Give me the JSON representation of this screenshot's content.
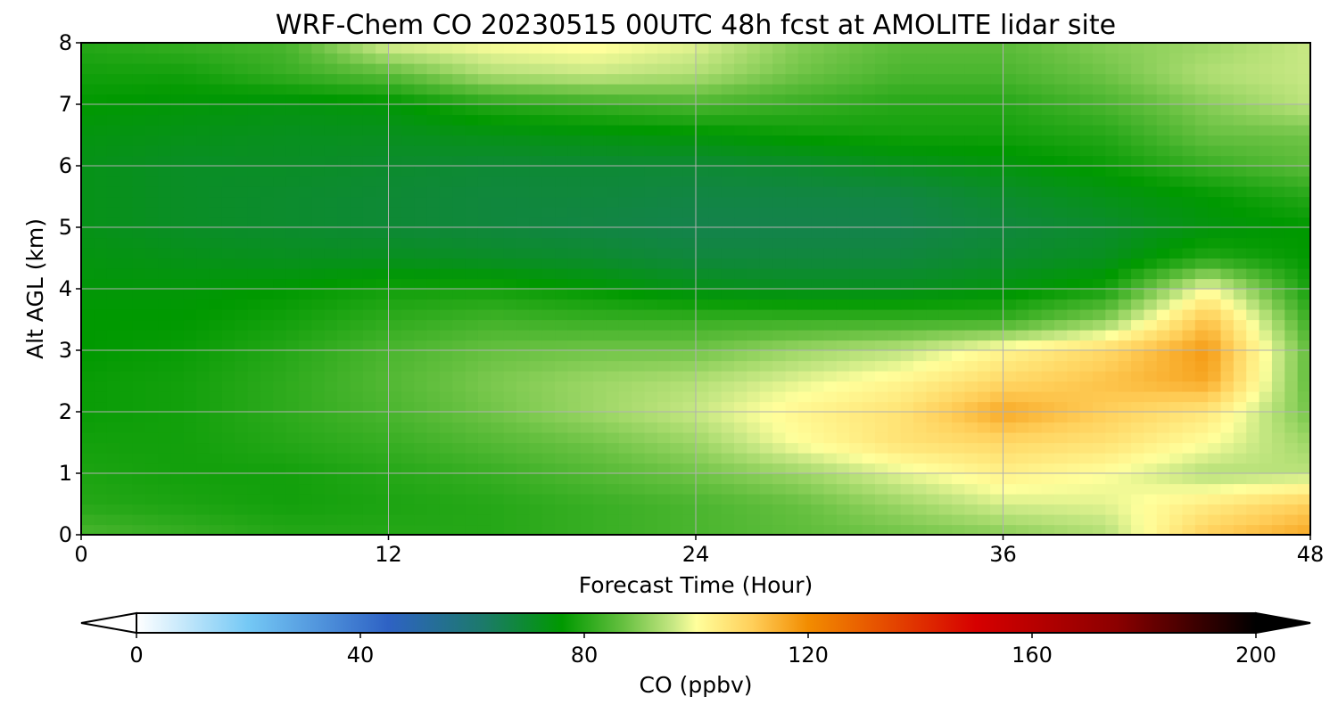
{
  "chart_data": {
    "type": "heatmap",
    "title": "WRF-Chem CO  20230515 00UTC 48h fcst at AMOLITE lidar site",
    "xlabel": "Forecast Time (Hour)",
    "ylabel": "Alt AGL (km)",
    "xlim": [
      0,
      48
    ],
    "ylim": [
      0,
      8
    ],
    "x_ticks": [
      0,
      12,
      24,
      36,
      48
    ],
    "y_ticks": [
      0,
      1,
      2,
      3,
      4,
      5,
      6,
      7,
      8
    ],
    "grid": true,
    "colorbar": {
      "label": "CO  (ppbv)",
      "min": 0,
      "max": 200,
      "ticks": [
        0,
        40,
        80,
        120,
        160,
        200
      ],
      "extend": "both",
      "orientation": "horizontal",
      "stops": [
        {
          "v": 0,
          "c": "#ffffff"
        },
        {
          "v": 20,
          "c": "#74c8f5"
        },
        {
          "v": 45,
          "c": "#2e62c4"
        },
        {
          "v": 62,
          "c": "#1c7a6a"
        },
        {
          "v": 76,
          "c": "#009900"
        },
        {
          "v": 87,
          "c": "#66c040"
        },
        {
          "v": 96,
          "c": "#c8e884"
        },
        {
          "v": 100,
          "c": "#ffff9c"
        },
        {
          "v": 110,
          "c": "#ffcf5a"
        },
        {
          "v": 120,
          "c": "#f28c00"
        },
        {
          "v": 150,
          "c": "#d60000"
        },
        {
          "v": 175,
          "c": "#8c0000"
        },
        {
          "v": 200,
          "c": "#000000"
        }
      ]
    },
    "field": {
      "x": [
        0,
        4,
        8,
        12,
        16,
        20,
        24,
        28,
        32,
        36,
        40,
        44,
        48
      ],
      "y": [
        0,
        0.5,
        1,
        1.5,
        2,
        2.5,
        3,
        3.5,
        4,
        4.5,
        5,
        5.5,
        6,
        6.5,
        7,
        7.5,
        8
      ],
      "values": [
        [
          84,
          82,
          80,
          80,
          80,
          82,
          84,
          86,
          88,
          90,
          94,
          110,
          116
        ],
        [
          80,
          79,
          78,
          79,
          80,
          82,
          84,
          87,
          92,
          97,
          98,
          104,
          110
        ],
        [
          79,
          78,
          78,
          80,
          82,
          85,
          88,
          92,
          98,
          103,
          100,
          94,
          95
        ],
        [
          78,
          78,
          80,
          82,
          85,
          88,
          92,
          100,
          106,
          108,
          106,
          100,
          92
        ],
        [
          77,
          78,
          81,
          84,
          88,
          92,
          96,
          102,
          106,
          116,
          110,
          105,
          88
        ],
        [
          77,
          78,
          81,
          85,
          89,
          92,
          94,
          98,
          102,
          108,
          112,
          116,
          86
        ],
        [
          76,
          77,
          80,
          84,
          87,
          88,
          88,
          92,
          95,
          102,
          108,
          118,
          86
        ],
        [
          76,
          76,
          78,
          81,
          83,
          82,
          82,
          82,
          82,
          82,
          90,
          112,
          82
        ],
        [
          75,
          75,
          76,
          78,
          78,
          76,
          73,
          72,
          72,
          74,
          78,
          100,
          78
        ],
        [
          74,
          73,
          72,
          72,
          71,
          70,
          68,
          68,
          68,
          70,
          72,
          80,
          76
        ],
        [
          73,
          71,
          70,
          69,
          68,
          67,
          66,
          66,
          66,
          68,
          70,
          74,
          76
        ],
        [
          73,
          71,
          70,
          69,
          68,
          68,
          67,
          67,
          67,
          70,
          73,
          76,
          80
        ],
        [
          73,
          71,
          71,
          70,
          69,
          69,
          69,
          70,
          72,
          74,
          77,
          82,
          86
        ],
        [
          74,
          73,
          72,
          72,
          73,
          74,
          75,
          77,
          78,
          78,
          80,
          87,
          88
        ],
        [
          76,
          75,
          74,
          75,
          80,
          82,
          84,
          82,
          80,
          80,
          84,
          90,
          95
        ],
        [
          78,
          78,
          82,
          86,
          94,
          96,
          94,
          88,
          84,
          84,
          88,
          94,
          96
        ],
        [
          80,
          82,
          84,
          98,
          100,
          101,
          98,
          90,
          86,
          86,
          90,
          92,
          96
        ]
      ]
    }
  }
}
